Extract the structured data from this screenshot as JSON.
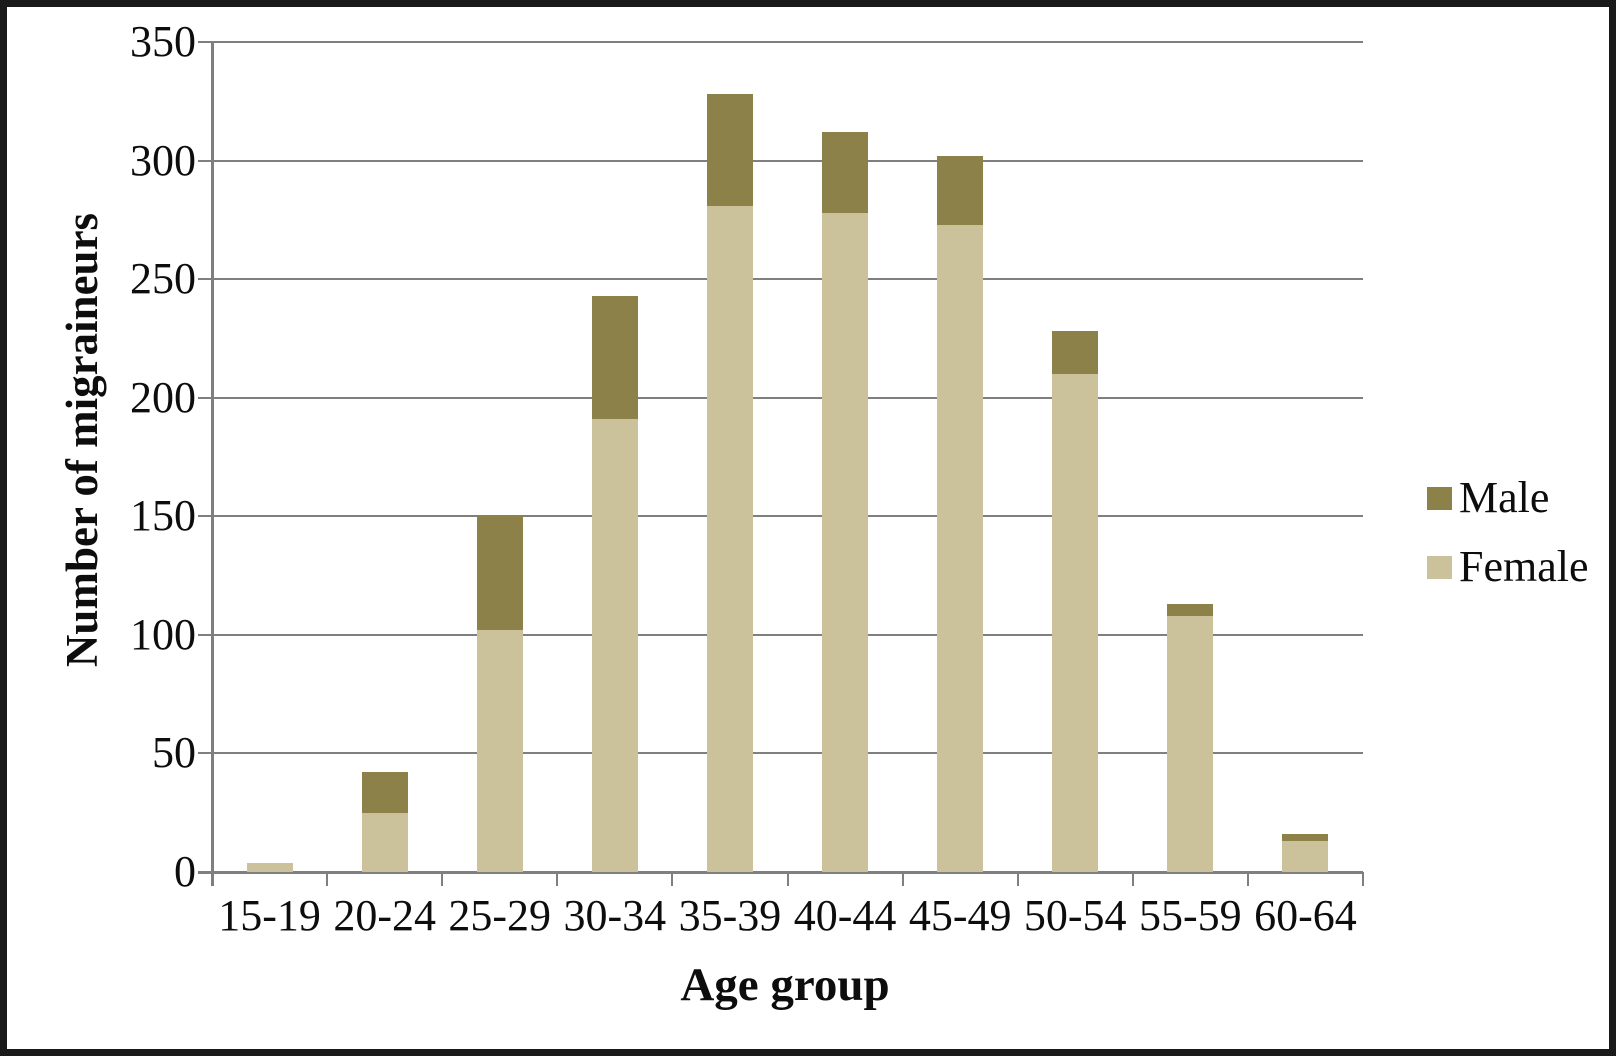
{
  "chart_data": {
    "type": "bar",
    "stacked": true,
    "title": "",
    "xlabel": "Age group",
    "ylabel": "Number of migraineurs",
    "categories": [
      "15-19",
      "20-24",
      "25-29",
      "30-34",
      "35-39",
      "40-44",
      "45-49",
      "50-54",
      "55-59",
      "60-64"
    ],
    "series": [
      {
        "name": "Male",
        "color": "#8C8149",
        "values": [
          0,
          17,
          48,
          52,
          47,
          34,
          29,
          18,
          5,
          3
        ]
      },
      {
        "name": "Female",
        "color": "#CBC29C",
        "values": [
          4,
          25,
          102,
          191,
          281,
          278,
          273,
          210,
          108,
          13
        ]
      }
    ],
    "stack_bottom_to_top": [
      "Female",
      "Male"
    ],
    "totals": [
      4,
      42,
      150,
      243,
      328,
      312,
      302,
      228,
      113,
      16
    ],
    "ylim": [
      0,
      350
    ],
    "ytick_step": 50,
    "ytick_labels": [
      "0",
      "50",
      "100",
      "150",
      "200",
      "250",
      "300",
      "350"
    ],
    "grid": true,
    "legend_position": "right",
    "colors": {
      "gridline": "#7f7f7f",
      "axis": "#7f7f7f",
      "text": "#0d0d0d",
      "figure_border": "#1a1a1a",
      "background": "#ffffff"
    }
  }
}
